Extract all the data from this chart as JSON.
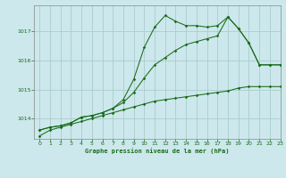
{
  "title": "Graphe pression niveau de la mer (hPa)",
  "background_color": "#cce8ec",
  "grid_color": "#aacccc",
  "line_color": "#1a6b1a",
  "ylim": [
    1013.3,
    1017.9
  ],
  "xlim": [
    -0.5,
    23
  ],
  "yticks": [
    1014,
    1015,
    1016,
    1017
  ],
  "xticks": [
    0,
    1,
    2,
    3,
    4,
    5,
    6,
    7,
    8,
    9,
    10,
    11,
    12,
    13,
    14,
    15,
    16,
    17,
    18,
    19,
    20,
    21,
    22,
    23
  ],
  "line_bottom_x": [
    0,
    1,
    2,
    3,
    4,
    5,
    6,
    7,
    8,
    9,
    10,
    11,
    12,
    13,
    14,
    15,
    16,
    17,
    18,
    19,
    20,
    21,
    22,
    23
  ],
  "line_bottom_y": [
    1013.4,
    1013.6,
    1013.7,
    1013.8,
    1013.9,
    1014.0,
    1014.1,
    1014.2,
    1014.3,
    1014.4,
    1014.5,
    1014.6,
    1014.65,
    1014.7,
    1014.75,
    1014.8,
    1014.85,
    1014.9,
    1014.95,
    1015.05,
    1015.1,
    1015.1,
    1015.1,
    1015.1
  ],
  "line_mid_x": [
    0,
    1,
    2,
    3,
    4,
    5,
    6,
    7,
    8,
    9,
    10,
    11,
    12,
    13,
    14,
    15,
    16,
    17,
    18,
    19,
    20,
    21,
    22,
    23
  ],
  "line_mid_y": [
    1013.6,
    1013.7,
    1013.75,
    1013.85,
    1014.05,
    1014.1,
    1014.2,
    1014.35,
    1014.55,
    1014.9,
    1015.4,
    1015.85,
    1016.1,
    1016.35,
    1016.55,
    1016.65,
    1016.75,
    1016.85,
    1017.5,
    1017.1,
    1016.6,
    1015.85,
    1015.85,
    1015.85
  ],
  "line_top_x": [
    0,
    1,
    2,
    3,
    4,
    5,
    6,
    7,
    8,
    9,
    10,
    11,
    12,
    13,
    14,
    15,
    16,
    17,
    18,
    19,
    20,
    21,
    22,
    23
  ],
  "line_top_y": [
    1013.6,
    1013.7,
    1013.75,
    1013.85,
    1014.05,
    1014.1,
    1014.2,
    1014.35,
    1014.65,
    1015.35,
    1016.45,
    1017.15,
    1017.55,
    1017.35,
    1017.2,
    1017.2,
    1017.15,
    1017.2,
    1017.5,
    1017.1,
    1016.6,
    1015.85,
    1015.85,
    1015.85
  ]
}
